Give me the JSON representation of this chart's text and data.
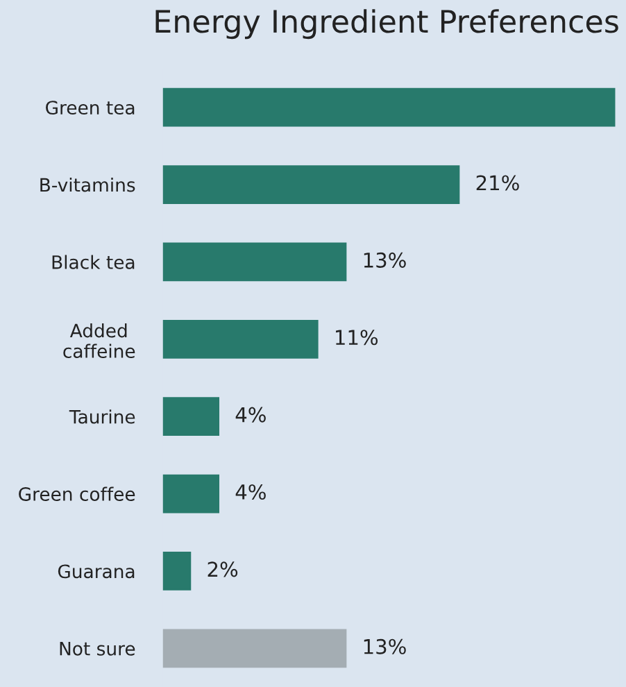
{
  "chart_data": {
    "type": "bar",
    "orientation": "horizontal",
    "title": "Energy Ingredient Preferences",
    "categories": [
      "Green tea",
      "B-vitamins",
      "Black tea",
      "Added\ncaffeine",
      "Taurine",
      "Green coffee",
      "Guarana",
      "Not sure"
    ],
    "values": [
      32,
      21,
      13,
      11,
      4,
      4,
      2,
      13
    ],
    "colors": [
      "#287a6c",
      "#287a6c",
      "#287a6c",
      "#287a6c",
      "#287a6c",
      "#287a6c",
      "#287a6c",
      "#a4adb3"
    ],
    "value_labels": [
      null,
      "21%",
      "13%",
      "11%",
      "4%",
      "4%",
      "2%",
      "13%"
    ],
    "grid": false,
    "legend": false
  }
}
